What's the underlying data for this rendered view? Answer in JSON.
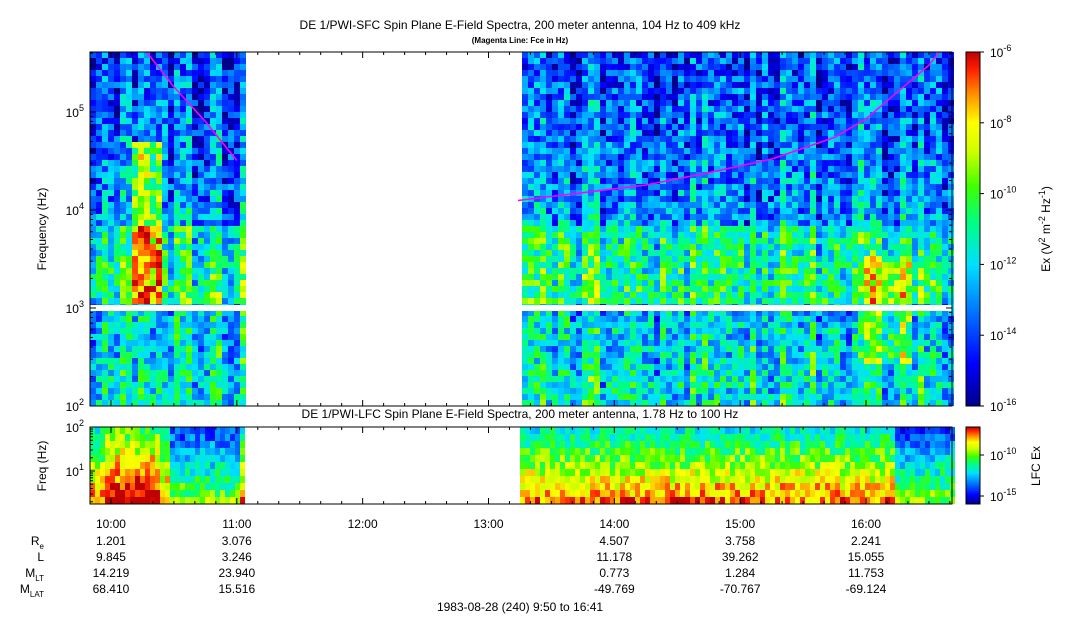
{
  "chart_data": [
    {
      "type": "heatmap",
      "title": "DE 1/PWI-SFC  Spin Plane E-Field Spectra, 200 meter antenna, 104 Hz to 409 kHz",
      "subtitle": "(Magenta Line: Fce in Hz)",
      "ylabel": "Frequency (Hz)",
      "yscale": "log",
      "ylim": [
        100,
        409000
      ],
      "yticks": [
        100,
        1000,
        10000,
        100000
      ],
      "ytick_labels": [
        {
          "base": "10",
          "exp": "2"
        },
        {
          "base": "10",
          "exp": "3"
        },
        {
          "base": "10",
          "exp": "4"
        },
        {
          "base": "10",
          "exp": "5"
        }
      ],
      "colorbar": {
        "label_parts": {
          "pre": "Ex (V",
          "sup1": "2",
          "mid1": " m",
          "sup2": "-2",
          "mid2": " Hz",
          "sup3": "-1",
          "post": ")"
        },
        "scale": "log",
        "range": [
          1e-16,
          1e-06
        ],
        "ticks": [
          {
            "base": "10",
            "exp": "-6"
          },
          {
            "base": "10",
            "exp": "-8"
          },
          {
            "base": "10",
            "exp": "-10"
          },
          {
            "base": "10",
            "exp": "-12"
          },
          {
            "base": "10",
            "exp": "-14"
          },
          {
            "base": "10",
            "exp": "-16"
          }
        ]
      },
      "data_gap": {
        "start": "11:03",
        "end": "13:14"
      },
      "fce_line": {
        "color": "#ff00ff",
        "segments": [
          [
            {
              "t": "10:17",
              "f": 409000
            },
            {
              "t": "10:30",
              "f": 180000
            },
            {
              "t": "10:45",
              "f": 80000
            },
            {
              "t": "11:00",
              "f": 32000
            }
          ],
          [
            {
              "t": "13:14",
              "f": 12500
            },
            {
              "t": "13:45",
              "f": 15000
            },
            {
              "t": "14:15",
              "f": 18000
            },
            {
              "t": "14:45",
              "f": 24000
            },
            {
              "t": "15:15",
              "f": 33000
            },
            {
              "t": "15:45",
              "f": 55000
            },
            {
              "t": "16:00",
              "f": 85000
            },
            {
              "t": "16:15",
              "f": 160000
            },
            {
              "t": "16:30",
              "f": 300000
            },
            {
              "t": "16:35",
              "f": 409000
            }
          ]
        ]
      }
    },
    {
      "type": "heatmap",
      "title": "DE 1/PWI-LFC  Spin Plane E-Field Spectra, 200 meter antenna, 1.78 Hz to 100 Hz",
      "ylabel": "Freq (Hz)",
      "yscale": "log",
      "ylim": [
        1.78,
        100
      ],
      "ytick_labels": [
        {
          "base": "10",
          "exp": "2"
        },
        {
          "base": "10",
          "exp": "1"
        }
      ],
      "colorbar": {
        "label": "LFC Ex",
        "scale": "log",
        "ticks": [
          {
            "base": "10",
            "exp": "-10"
          },
          {
            "base": "10",
            "exp": "-15"
          }
        ]
      },
      "data_gap": {
        "start": "11:03",
        "end": "13:14"
      }
    }
  ],
  "x_axis": {
    "start": "9:50",
    "end": "16:41",
    "tick_labels": [
      "10:00",
      "11:00",
      "12:00",
      "13:00",
      "14:00",
      "15:00",
      "16:00"
    ],
    "footer": "1983-08-28 (240) 9:50 to 16:41"
  },
  "ephemeris": {
    "rows": [
      {
        "label": "R",
        "sub": "e",
        "values": [
          "1.201",
          "3.076",
          "",
          "",
          "4.507",
          "3.758",
          "2.241"
        ]
      },
      {
        "label": "L",
        "sub": "",
        "values": [
          "9.845",
          "3.246",
          "",
          "",
          "11.178",
          "39.262",
          "15.055"
        ]
      },
      {
        "label": "M",
        "sub": "LT",
        "values": [
          "14.219",
          "23.940",
          "",
          "",
          "0.773",
          "1.284",
          "11.753"
        ]
      },
      {
        "label": "M",
        "sub": "LAT",
        "values": [
          "68.410",
          "15.516",
          "",
          "",
          "-49.769",
          "-70.767",
          "-69.124"
        ]
      }
    ]
  }
}
